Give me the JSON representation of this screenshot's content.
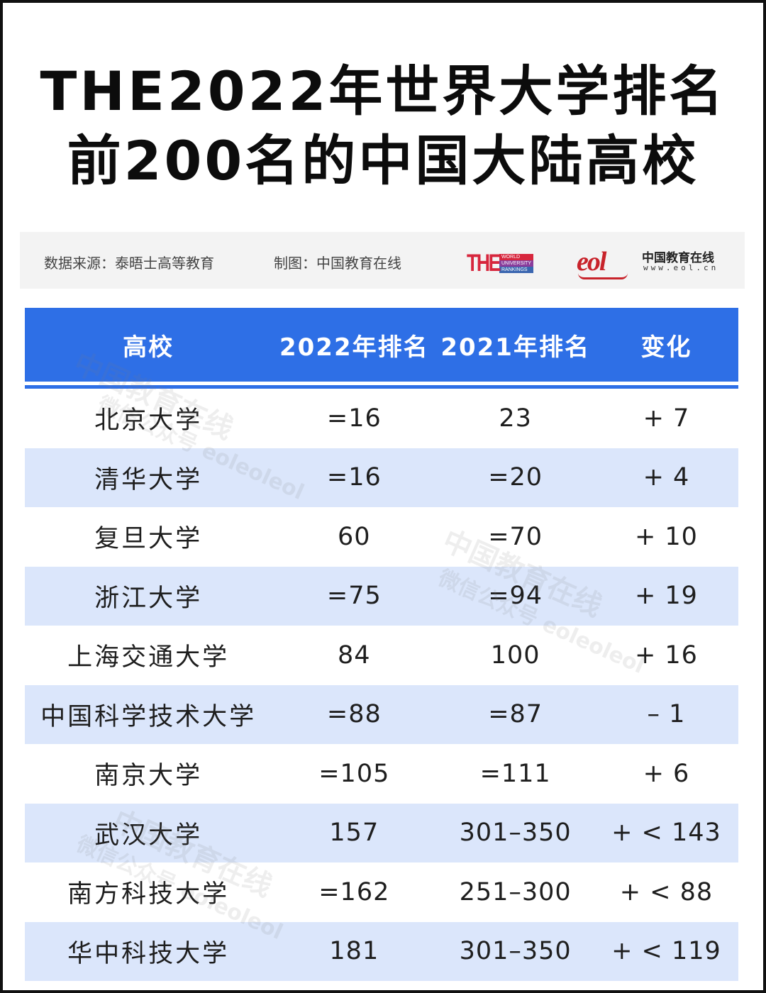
{
  "title": {
    "line1": "THE2022年世界大学排名",
    "line2": "前200名的中国大陆高校"
  },
  "source_bar": {
    "data_source": "数据来源：泰晤士高等教育",
    "made_by": "制图：中国教育在线",
    "the_logo": {
      "letters": "THE",
      "sub1": "WORLD",
      "sub2": "UNIVERSITY",
      "sub3": "RANKINGS"
    },
    "eol_logo": {
      "mark": "eol",
      "name": "中国教育在线",
      "url": "www.eol.cn"
    }
  },
  "table": {
    "headers": [
      "高校",
      "2022年排名",
      "2021年排名",
      "变化"
    ],
    "rows": [
      {
        "name": "北京大学",
        "rank2022": "=16",
        "rank2021": "23",
        "change": "+ 7"
      },
      {
        "name": "清华大学",
        "rank2022": "=16",
        "rank2021": "=20",
        "change": "+ 4"
      },
      {
        "name": "复旦大学",
        "rank2022": "60",
        "rank2021": "=70",
        "change": "+ 10"
      },
      {
        "name": "浙江大学",
        "rank2022": "=75",
        "rank2021": "=94",
        "change": "+ 19"
      },
      {
        "name": "上海交通大学",
        "rank2022": "84",
        "rank2021": "100",
        "change": "+ 16"
      },
      {
        "name": "中国科学技术大学",
        "rank2022": "=88",
        "rank2021": "=87",
        "change": "– 1"
      },
      {
        "name": "南京大学",
        "rank2022": "=105",
        "rank2021": "=111",
        "change": "+ 6"
      },
      {
        "name": "武汉大学",
        "rank2022": "157",
        "rank2021": "301–350",
        "change": "+ < 143"
      },
      {
        "name": "南方科技大学",
        "rank2022": "=162",
        "rank2021": "251–300",
        "change": "+ < 88"
      },
      {
        "name": "华中科技大学",
        "rank2022": "181",
        "rank2021": "301–350",
        "change": "+ < 119"
      }
    ]
  },
  "watermarks": {
    "line1": "中国教育在线",
    "line2": "微信公众号 eoleoleol"
  },
  "colors": {
    "header_bg": "#2e6fe6",
    "alt_row_bg": "#dbe6fb",
    "the_red": "#d7263d",
    "eol_red": "#c8232b"
  }
}
